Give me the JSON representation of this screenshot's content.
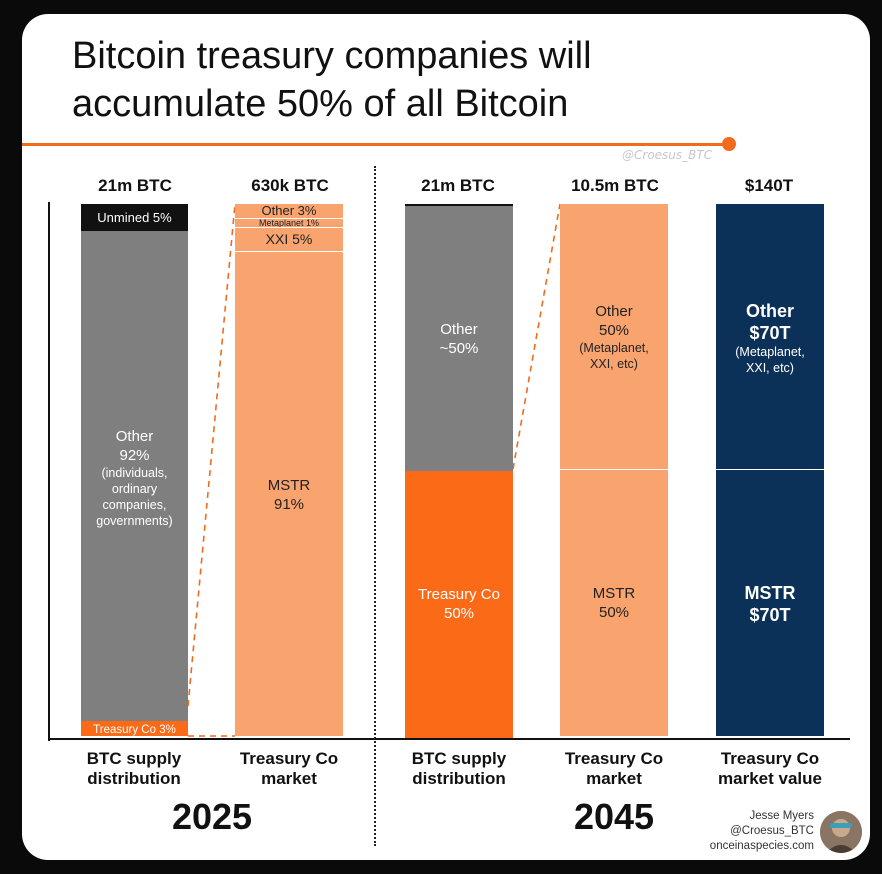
{
  "title_line1": "Bitcoin treasury companies will",
  "title_line2": "accumulate 50% of all Bitcoin",
  "watermark": "@Croesus_BTC",
  "colors": {
    "accent": "#f26b1d",
    "gray": "#7f7f7f",
    "black": "#111111",
    "light_orange": "#f9a46f",
    "treasury_orange": "#fb6a17",
    "navy": "#0b3158"
  },
  "chart_data": {
    "type": "bar",
    "subtype": "stacked-100",
    "panels": [
      {
        "year": "2025",
        "bars": [
          {
            "top_label": "21m BTC",
            "category": [
              "BTC supply",
              "distribution"
            ],
            "segments": [
              {
                "label": "Unmined 5%",
                "value": 5,
                "color": "#111111"
              },
              {
                "label": "Other",
                "pct_label": "92%",
                "notes": [
                  "(individuals,",
                  "ordinary",
                  "companies,",
                  "governments)"
                ],
                "value": 92,
                "color": "#7f7f7f"
              },
              {
                "label": "Treasury Co 3%",
                "value": 3,
                "color": "#fb6a17"
              }
            ]
          },
          {
            "top_label": "630k BTC",
            "category": [
              "Treasury Co",
              "market"
            ],
            "segments": [
              {
                "label": "Other 3%",
                "value": 3,
                "color": "#f9a46f"
              },
              {
                "label": "Metaplanet 1%",
                "value": 1,
                "color": "#f9a46f"
              },
              {
                "label": "XXI 5%",
                "value": 5,
                "color": "#f9a46f"
              },
              {
                "label": "MSTR",
                "pct_label": "91%",
                "value": 91,
                "color": "#f9a46f"
              }
            ]
          }
        ]
      },
      {
        "year": "2045",
        "bars": [
          {
            "top_label": "21m BTC",
            "category": [
              "BTC supply",
              "distribution"
            ],
            "segments": [
              {
                "label": "Other",
                "pct_label": "~50%",
                "value": 50,
                "color": "#7f7f7f"
              },
              {
                "label": "Treasury Co",
                "pct_label": "50%",
                "value": 50,
                "color": "#fb6a17"
              }
            ]
          },
          {
            "top_label": "10.5m BTC",
            "category": [
              "Treasury Co",
              "market"
            ],
            "segments": [
              {
                "label": "Other",
                "pct_label": "50%",
                "notes": [
                  "(Metaplanet,",
                  "XXI, etc)"
                ],
                "value": 50,
                "color": "#f9a46f"
              },
              {
                "label": "MSTR",
                "pct_label": "50%",
                "value": 50,
                "color": "#f9a46f"
              }
            ]
          },
          {
            "top_label": "$140T",
            "category": [
              "Treasury Co",
              "market value"
            ],
            "segments": [
              {
                "label": "Other",
                "pct_label": "$70T",
                "notes": [
                  "(Metaplanet,",
                  "XXI, etc)"
                ],
                "value": 50,
                "color": "#0b3158"
              },
              {
                "label": "MSTR",
                "pct_label": "$70T",
                "value": 50,
                "color": "#0b3158"
              }
            ]
          }
        ]
      }
    ]
  },
  "credit": {
    "name": "Jesse Myers",
    "handle": "@Croesus_BTC",
    "site": "onceinaspecies.com"
  }
}
